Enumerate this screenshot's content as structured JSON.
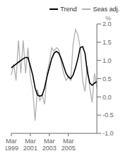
{
  "chart_data": {
    "type": "line",
    "title": "",
    "ylabel": "%",
    "categories": [
      "Mar\n1999",
      null,
      null,
      null,
      null,
      null,
      null,
      null,
      "Mar\n2001",
      null,
      null,
      null,
      null,
      null,
      null,
      null,
      "Mar\n2003",
      null,
      null,
      null,
      null,
      null,
      null,
      null,
      "Mar\n2005",
      null,
      null,
      null,
      null,
      null,
      null,
      null,
      null,
      null,
      null,
      null,
      null
    ],
    "series": [
      {
        "name": "Trend",
        "color": "#000000",
        "values": [
          0.8,
          0.85,
          0.9,
          0.95,
          1.0,
          1.05,
          1.08,
          1.08,
          0.85,
          0.6,
          0.25,
          0.05,
          0.02,
          0.05,
          0.25,
          0.55,
          0.8,
          1.05,
          1.2,
          1.25,
          1.2,
          1.05,
          0.85,
          0.65,
          0.55,
          0.5,
          0.6,
          0.8,
          1.05,
          1.35,
          1.38,
          1.2,
          0.68,
          0.38,
          0.32,
          0.38,
          0.42
        ]
      },
      {
        "name": "Seas adj.",
        "color": "#b0b0b0",
        "values": [
          0.6,
          0.9,
          0.45,
          1.55,
          0.65,
          1.55,
          0.65,
          1.35,
          0.55,
          0.2,
          -0.65,
          0.2,
          -0.1,
          0.05,
          -0.2,
          0.65,
          0.95,
          1.35,
          1.25,
          1.35,
          1.3,
          0.95,
          0.65,
          0.45,
          0.55,
          0.45,
          1.45,
          1.85,
          1.7,
          1.35,
          0.45,
          0.15,
          0.85,
          0.25,
          -0.15,
          0.65,
          0.25
        ]
      }
    ],
    "ylim": [
      -1.0,
      2.0
    ],
    "yticks": [
      {
        "value": -1.0,
        "label": "-1.0"
      },
      -0.5,
      {
        "value": 0.0,
        "label": "0.0"
      },
      0.5,
      {
        "value": 1.0,
        "label": "1.0"
      },
      1.5,
      {
        "value": 2.0,
        "label": "2.0"
      }
    ],
    "grid": false,
    "legend": "upper right"
  }
}
